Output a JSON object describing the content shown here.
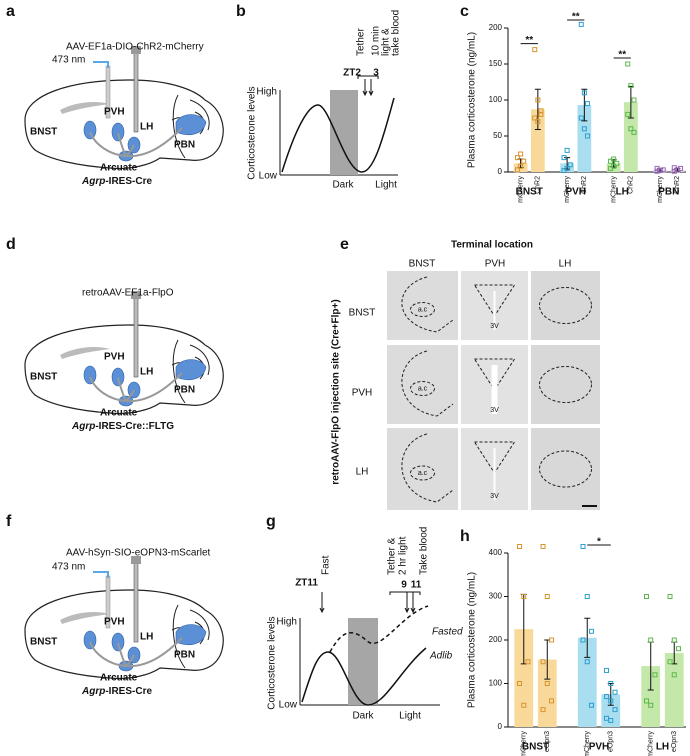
{
  "panel_a": {
    "letter": "a",
    "virus": "AAV-EF1a-DIO-ChR2-mCherry",
    "light": "473 nm",
    "regions": [
      "BNST",
      "PVH",
      "LH",
      "PBN"
    ],
    "arcuate": "Arcuate",
    "line_italic": "Agrp",
    "line_rest": "-IRES-Cre"
  },
  "panel_b": {
    "letter": "b",
    "events": [
      "Tether",
      "10 min",
      "light &",
      "take blood"
    ],
    "zt": "ZT2",
    "zt_end": "3",
    "y_label": "Corticosterone levels",
    "high": "High",
    "low": "Low",
    "dark": "Dark",
    "light": "Light"
  },
  "panel_d": {
    "letter": "d",
    "virus": "retroAAV-EF1a-FlpO",
    "regions": [
      "BNST",
      "PVH",
      "LH",
      "PBN"
    ],
    "arcuate": "Arcuate",
    "line_italic": "Agrp",
    "line_rest": "-IRES-Cre::FLTG"
  },
  "panel_e": {
    "letter": "e",
    "title": "Terminal location",
    "columns": [
      "BNST",
      "PVH",
      "LH"
    ],
    "rows": [
      "BNST",
      "PVH",
      "LH"
    ],
    "side_label": "retroAAV-FlpO injection site (Cre+Flp+)",
    "marks": [
      "a.c",
      "3V"
    ]
  },
  "panel_f": {
    "letter": "f",
    "virus": "AAV-hSyn-SIO-eOPN3-mScarlet",
    "light": "473 nm",
    "regions": [
      "BNST",
      "PVH",
      "LH",
      "PBN"
    ],
    "arcuate": "Arcuate",
    "line_italic": "Agrp",
    "line_rest": "-IRES-Cre"
  },
  "panel_g": {
    "letter": "g",
    "fast": "Fast",
    "zt": "ZT11",
    "events": [
      "Tether &",
      "2 hr light"
    ],
    "blood": "Take blood",
    "t1": "9",
    "t2": "11",
    "y_label": "Corticosterone levels",
    "high": "High",
    "low": "Low",
    "dark": "Dark",
    "light": "Light",
    "fasted": "Fasted",
    "adlib": "Adlib"
  },
  "chart_data": [
    {
      "type": "bar",
      "letter": "c",
      "y_label": "Plasma corticosterone (ng/mL)",
      "categories": [
        "mCherry",
        "ChR2",
        "mCherry",
        "ChR2",
        "mCherry",
        "ChR2",
        "mCherry",
        "ChR2"
      ],
      "group_labels": [
        "BNST",
        "PVH",
        "LH",
        "PBN"
      ],
      "values": [
        12,
        87,
        12,
        93,
        12,
        97,
        3,
        3
      ],
      "errors": [
        6,
        28,
        8,
        22,
        5,
        22,
        2,
        2
      ],
      "points": [
        [
          3,
          8,
          15,
          20,
          25
        ],
        [
          170,
          100,
          80,
          75,
          70,
          85
        ],
        [
          2,
          5,
          10,
          20,
          30
        ],
        [
          205,
          110,
          95,
          75,
          60,
          50
        ],
        [
          5,
          8,
          12,
          15,
          18
        ],
        [
          150,
          120,
          100,
          80,
          60,
          55
        ],
        [
          1,
          2,
          3,
          5
        ],
        [
          1,
          3,
          5,
          6
        ]
      ],
      "colors": [
        "#f9d99a",
        "#f9d99a",
        "#a9def0",
        "#a9def0",
        "#c3e8aa",
        "#c3e8aa",
        "#e0cdee",
        "#e0cdee"
      ],
      "point_colors": [
        "#d8932e",
        "#d8932e",
        "#2b9fcc",
        "#2b9fcc",
        "#5cb84a",
        "#5cb84a",
        "#9b6ab8",
        "#9b6ab8"
      ],
      "significance": [
        "**",
        "**",
        "**",
        null
      ],
      "ylim": [
        0,
        200
      ],
      "yticks": [
        0,
        50,
        100,
        150,
        200
      ]
    },
    {
      "type": "bar",
      "letter": "h",
      "y_label": "Plasma corticosterone (ng/mL)",
      "categories": [
        "mCherry",
        "eOpn3",
        "mCherry",
        "eOpn3",
        "mCherry",
        "eOpn3"
      ],
      "group_labels": [
        "BNST",
        "PVH",
        "LH"
      ],
      "values": [
        225,
        155,
        205,
        75,
        140,
        170
      ],
      "errors": [
        80,
        45,
        45,
        25,
        55,
        25
      ],
      "points": [
        [
          415,
          300,
          150,
          100,
          50
        ],
        [
          415,
          300,
          200,
          150,
          100,
          60,
          40
        ],
        [
          415,
          300,
          220,
          200,
          150,
          50
        ],
        [
          130,
          100,
          80,
          70,
          60,
          40,
          20,
          15
        ],
        [
          300,
          200,
          120,
          60,
          50
        ],
        [
          300,
          200,
          180,
          150,
          120
        ]
      ],
      "colors": [
        "#f9d99a",
        "#f9d99a",
        "#a9def0",
        "#a9def0",
        "#c3e8aa",
        "#c3e8aa"
      ],
      "point_colors": [
        "#d8932e",
        "#d8932e",
        "#2b9fcc",
        "#2b9fcc",
        "#5cb84a",
        "#5cb84a"
      ],
      "significance": [
        null,
        "*",
        null
      ],
      "ylim": [
        0,
        400
      ],
      "yticks": [
        0,
        100,
        200,
        300,
        400
      ]
    }
  ]
}
